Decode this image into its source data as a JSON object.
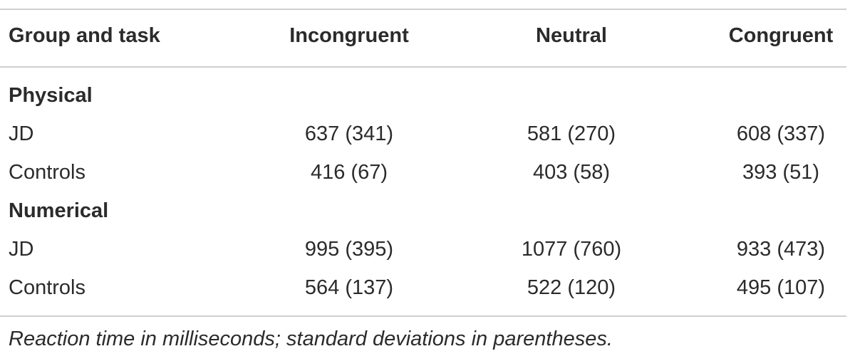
{
  "table": {
    "headers": [
      "Group and task",
      "Incongruent",
      "Neutral",
      "Congruent"
    ],
    "sections": [
      {
        "title": "Physical",
        "rows": [
          {
            "label": "JD",
            "values": [
              "637 (341)",
              "581 (270)",
              "608 (337)"
            ]
          },
          {
            "label": "Controls",
            "values": [
              "416 (67)",
              "403 (58)",
              "393 (51)"
            ]
          }
        ]
      },
      {
        "title": "Numerical",
        "rows": [
          {
            "label": "JD",
            "values": [
              "995 (395)",
              "1077 (760)",
              "933 (473)"
            ]
          },
          {
            "label": "Controls",
            "values": [
              "564 (137)",
              "522 (120)",
              "495 (107)"
            ]
          }
        ]
      }
    ],
    "footnote": "Reaction time in milliseconds; standard deviations in parentheses."
  }
}
